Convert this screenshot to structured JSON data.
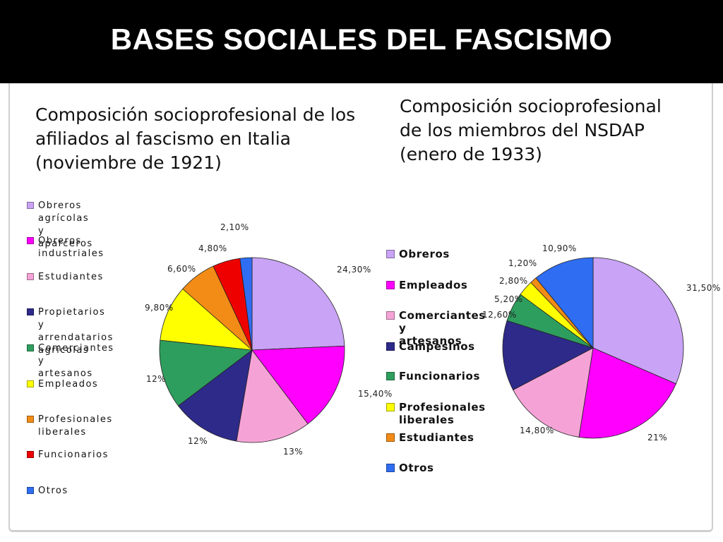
{
  "header": {
    "title": "BASES SOCIALES DEL FASCISMO"
  },
  "colors": {
    "lavender": "#c9a3f5",
    "magenta": "#ff00ff",
    "pink": "#f5a3d6",
    "navy": "#2e2a8a",
    "green": "#2e9e5e",
    "yellow": "#ffff00",
    "orange": "#f28c16",
    "red": "#ee0000",
    "blue": "#2f6df2"
  },
  "chart_data": [
    {
      "type": "pie",
      "title": "Composición socioprofesional de los\nafiliados al fascismo en Italia\n(noviembre de 1921)",
      "legend_position": "left",
      "start_angle": "12 o'clock, clockwise",
      "slices": [
        {
          "label": "Obreros agrícolas y\naparceros",
          "value": 24.3,
          "display": "24,30%",
          "color": "#c9a3f5"
        },
        {
          "label": "Obreros industriales",
          "value": 15.4,
          "display": "15,40%",
          "color": "#ff00ff"
        },
        {
          "label": "Estudiantes",
          "value": 13,
          "display": "13%",
          "color": "#f5a3d6"
        },
        {
          "label": "Propietarios y\narrendatarios agrícolas",
          "value": 12,
          "display": "12%",
          "color": "#2e2a8a"
        },
        {
          "label": "Comerciantes y\nartesanos",
          "value": 12,
          "display": "12%",
          "color": "#2e9e5e"
        },
        {
          "label": "Empleados",
          "value": 9.8,
          "display": "9,80%",
          "color": "#ffff00"
        },
        {
          "label": "Profesionales liberales",
          "value": 6.6,
          "display": "6,60%",
          "color": "#f28c16"
        },
        {
          "label": "Funcionarios",
          "value": 4.8,
          "display": "4,80%",
          "color": "#ee0000"
        },
        {
          "label": "Otros",
          "value": 2.1,
          "display": "2,10%",
          "color": "#2f6df2"
        }
      ]
    },
    {
      "type": "pie",
      "title": "Composición socioprofesional\nde los miembros del NSDAP\n(enero de 1933)",
      "legend_position": "left",
      "start_angle": "12 o'clock, clockwise",
      "slices": [
        {
          "label": "Obreros",
          "value": 31.5,
          "display": "31,50%",
          "color": "#c9a3f5"
        },
        {
          "label": "Empleados",
          "value": 21,
          "display": "21%",
          "color": "#ff00ff"
        },
        {
          "label": "Comerciantes y\nartesanos",
          "value": 14.8,
          "display": "14,80%",
          "color": "#f5a3d6"
        },
        {
          "label": "Campesinos",
          "value": 12.6,
          "display": "12,60%",
          "color": "#2e2a8a"
        },
        {
          "label": "Funcionarios",
          "value": 5.2,
          "display": "5,20%",
          "color": "#2e9e5e"
        },
        {
          "label": "Profesionales\nliberales",
          "value": 2.8,
          "display": "2,80%",
          "color": "#ffff00"
        },
        {
          "label": "Estudiantes",
          "value": 1.2,
          "display": "1,20%",
          "color": "#f28c16"
        },
        {
          "label": "Otros",
          "value": 10.9,
          "display": "10,90%",
          "color": "#2f6df2"
        }
      ]
    }
  ]
}
